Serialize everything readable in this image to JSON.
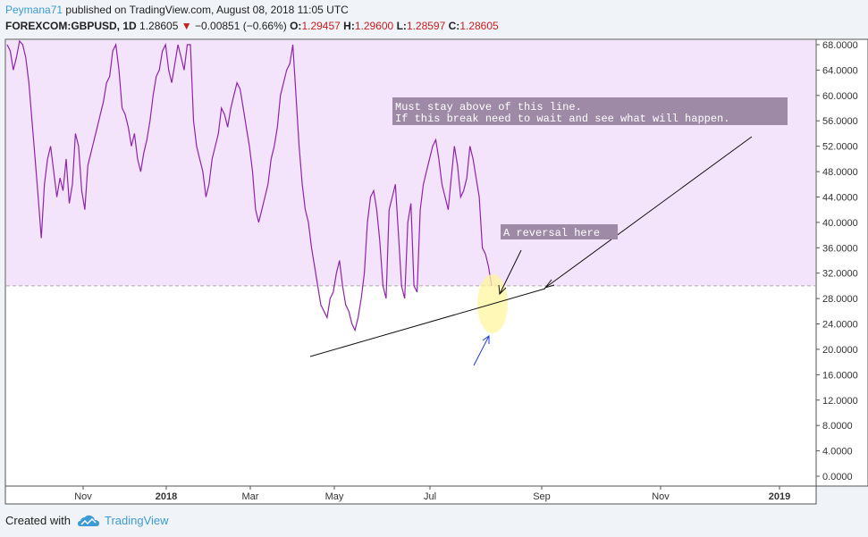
{
  "header": {
    "author": "Peymana71",
    "published": "published on TradingView.com, August 08, 2018 11:05 UTC",
    "symbol": "FOREXCOM:GBPUSD, 1D",
    "last": "1.28605",
    "change": "−0.00851 (−0.66%)",
    "o_label": "O:",
    "o_val": "1.29457",
    "h_label": "H:",
    "h_val": "1.29600",
    "l_label": "L:",
    "l_val": "1.28597",
    "c_label": "C:",
    "c_val": "1.28605"
  },
  "footer": {
    "created_with": "Created with",
    "brand": "TradingView"
  },
  "annotations": {
    "note1_line1": "Must stay above of this line.",
    "note1_line2": "If this break need to wait and see what will happen.",
    "note2": "A reversal here"
  },
  "colors": {
    "line": "#8e24aa",
    "band_fill": "#f4e4fb",
    "accent": "#3c9bd6",
    "highlight": "#fff59d",
    "arrow_blue": "#1e3cd6"
  },
  "chart_data": {
    "type": "line",
    "yticks": [
      "68.0000",
      "64.0000",
      "60.0000",
      "56.0000",
      "52.0000",
      "48.0000",
      "44.0000",
      "40.0000",
      "36.0000",
      "32.0000",
      "28.0000",
      "24.0000",
      "20.0000",
      "16.0000",
      "12.0000",
      "8.0000",
      "4.0000",
      "0.0000"
    ],
    "xticks": [
      "Nov",
      "2018",
      "Mar",
      "May",
      "Jul",
      "Sep",
      "Nov",
      "2019"
    ],
    "ylim": [
      0,
      68
    ],
    "reference_level": 30,
    "series": [
      {
        "values": [
          68,
          67,
          64,
          66,
          69,
          68,
          66,
          62,
          56,
          50,
          44,
          37.5,
          46,
          50,
          52,
          48,
          44,
          47,
          45,
          50,
          43,
          46,
          54,
          52,
          45,
          42,
          49,
          51,
          53,
          55,
          57,
          59,
          62,
          63,
          67,
          68,
          64,
          58,
          57,
          55,
          52,
          54,
          50,
          48,
          51,
          53,
          56,
          60,
          63,
          64,
          67,
          68,
          64,
          62,
          65,
          68,
          66,
          64,
          68,
          68,
          56,
          52,
          50,
          48,
          44,
          46,
          50,
          52,
          54,
          58,
          57,
          55,
          58,
          60,
          62,
          61,
          58,
          55,
          52,
          48,
          42,
          40,
          42,
          44,
          46,
          50,
          52,
          55,
          60,
          62,
          64,
          65,
          68,
          60,
          52,
          46,
          42,
          40,
          36,
          33,
          30,
          27,
          26,
          25,
          28,
          29,
          32,
          34,
          30,
          27,
          26,
          24,
          23,
          25,
          28,
          32,
          40,
          44,
          45,
          42,
          37,
          30,
          28,
          42,
          44,
          46,
          38,
          30,
          28,
          40,
          43,
          30,
          29,
          42,
          46,
          48,
          50,
          52,
          53,
          50,
          46,
          44,
          42,
          47,
          52,
          49,
          44,
          45,
          47,
          52,
          50,
          47,
          44,
          36,
          35,
          33,
          30
        ]
      }
    ]
  }
}
